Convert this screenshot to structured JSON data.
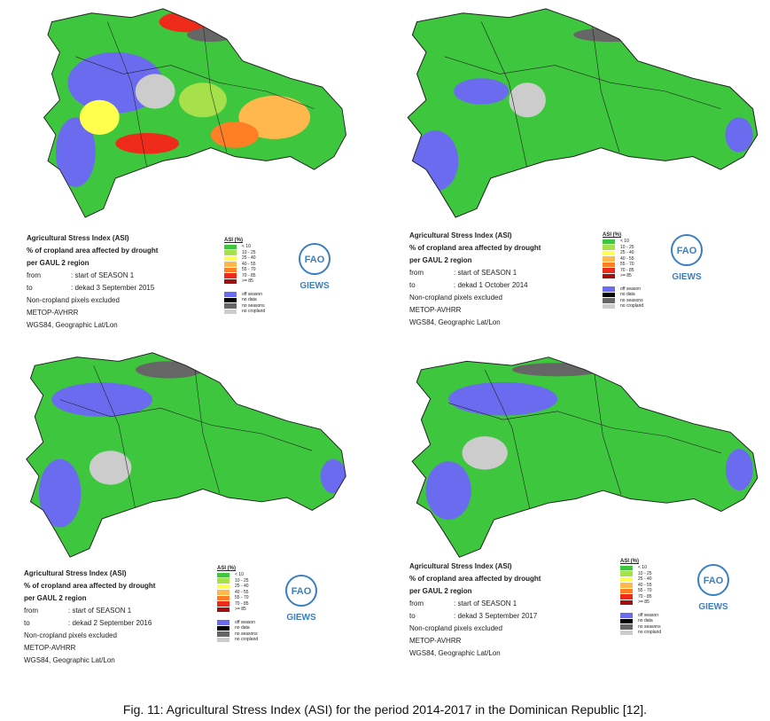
{
  "panels": [
    {
      "title": "Agricultural Stress Index (ASI)",
      "subtitle_1": "% of cropland area affected by drought",
      "subtitle_2": "per GAUL 2 region",
      "from_label": "from",
      "from_value": ": start of SEASON 1",
      "to_label": "to",
      "to_value": ": dekad 3 September 2015",
      "note": "Non-cropland pixels excluded",
      "sensor": "METOP-AVHRR",
      "projection": "WGS84, Geographic Lat/Lon",
      "legend_title": "ASI (%)",
      "legend": [
        {
          "label": "< 10",
          "color": "#3ec63e"
        },
        {
          "label": "10 - 25",
          "color": "#a6e04a"
        },
        {
          "label": "25 - 40",
          "color": "#ffff4d"
        },
        {
          "label": "40 - 55",
          "color": "#ffb84d"
        },
        {
          "label": "55 - 70",
          "color": "#ff7f27"
        },
        {
          "label": "70 - 85",
          "color": "#ee2a1a"
        },
        {
          "label": ">= 85",
          "color": "#a01010"
        },
        {
          "label": "off season",
          "color": "#6b6bf0"
        },
        {
          "label": "no data",
          "color": "#000000"
        },
        {
          "label": "no seasons",
          "color": "#666666"
        },
        {
          "label": "no cropland",
          "color": "#cccccc"
        }
      ],
      "logo_mark": "FAO",
      "logo": "GIEWS"
    },
    {
      "title": "Agricultural Stress Index (ASI)",
      "subtitle_1": "% of cropland area affected by drought",
      "subtitle_2": "per GAUL 2 region",
      "from_label": "from",
      "from_value": ": start of SEASON 1",
      "to_label": "to",
      "to_value": ": dekad 1 October 2014",
      "note": "Non-cropland pixels excluded",
      "sensor": "METOP-AVHRR",
      "projection": "WGS84, Geographic Lat/Lon",
      "legend_title": "ASI (%)",
      "legend": [
        {
          "label": "< 10",
          "color": "#3ec63e"
        },
        {
          "label": "10 - 25",
          "color": "#a6e04a"
        },
        {
          "label": "25 - 40",
          "color": "#ffff4d"
        },
        {
          "label": "40 - 55",
          "color": "#ffb84d"
        },
        {
          "label": "55 - 70",
          "color": "#ff7f27"
        },
        {
          "label": "70 - 85",
          "color": "#ee2a1a"
        },
        {
          "label": ">= 85",
          "color": "#a01010"
        },
        {
          "label": "off season",
          "color": "#6b6bf0"
        },
        {
          "label": "no data",
          "color": "#000000"
        },
        {
          "label": "no seasons",
          "color": "#666666"
        },
        {
          "label": "no cropland",
          "color": "#cccccc"
        }
      ],
      "logo_mark": "FAO",
      "logo": "GIEWS"
    },
    {
      "title": "Agricultural Stress Index (ASI)",
      "subtitle_1": "% of cropland area affected by drought",
      "subtitle_2": "per GAUL 2 region",
      "from_label": "from",
      "from_value": ": start of SEASON 1",
      "to_label": "to",
      "to_value": ": dekad 2 September 2016",
      "note": "Non-cropland pixels excluded",
      "sensor": "METOP-AVHRR",
      "projection": "WGS84, Geographic Lat/Lon",
      "legend_title": "ASI (%)",
      "legend": [
        {
          "label": "< 10",
          "color": "#3ec63e"
        },
        {
          "label": "10 - 25",
          "color": "#a6e04a"
        },
        {
          "label": "25 - 40",
          "color": "#ffff4d"
        },
        {
          "label": "40 - 55",
          "color": "#ffb84d"
        },
        {
          "label": "55 - 70",
          "color": "#ff7f27"
        },
        {
          "label": "70 - 85",
          "color": "#ee2a1a"
        },
        {
          "label": ">= 85",
          "color": "#a01010"
        },
        {
          "label": "off season",
          "color": "#6b6bf0"
        },
        {
          "label": "no data",
          "color": "#000000"
        },
        {
          "label": "no seasons",
          "color": "#666666"
        },
        {
          "label": "no cropland",
          "color": "#cccccc"
        }
      ],
      "logo_mark": "FAO",
      "logo": "GIEWS"
    },
    {
      "title": "Agricultural Stress Index (ASI)",
      "subtitle_1": "% of cropland area affected by drought",
      "subtitle_2": "per GAUL 2 region",
      "from_label": "from",
      "from_value": ": start of SEASON 1",
      "to_label": "to",
      "to_value": ": dekad 3 September 2017",
      "note": "Non-cropland pixels excluded",
      "sensor": "METOP-AVHRR",
      "projection": "WGS84, Geographic Lat/Lon",
      "legend_title": "ASI (%)",
      "legend": [
        {
          "label": "< 10",
          "color": "#3ec63e"
        },
        {
          "label": "10 - 25",
          "color": "#a6e04a"
        },
        {
          "label": "25 - 40",
          "color": "#ffff4d"
        },
        {
          "label": "40 - 55",
          "color": "#ffb84d"
        },
        {
          "label": "55 - 70",
          "color": "#ff7f27"
        },
        {
          "label": "70 - 85",
          "color": "#ee2a1a"
        },
        {
          "label": ">= 85",
          "color": "#a01010"
        },
        {
          "label": "off season",
          "color": "#6b6bf0"
        },
        {
          "label": "no data",
          "color": "#000000"
        },
        {
          "label": "no seasons",
          "color": "#666666"
        },
        {
          "label": "no cropland",
          "color": "#cccccc"
        }
      ],
      "logo_mark": "FAO",
      "logo": "GIEWS"
    }
  ],
  "caption": "Fig. 11: Agricultural Stress Index (ASI) for the period 2014-2017 in the Dominican Republic [12]."
}
